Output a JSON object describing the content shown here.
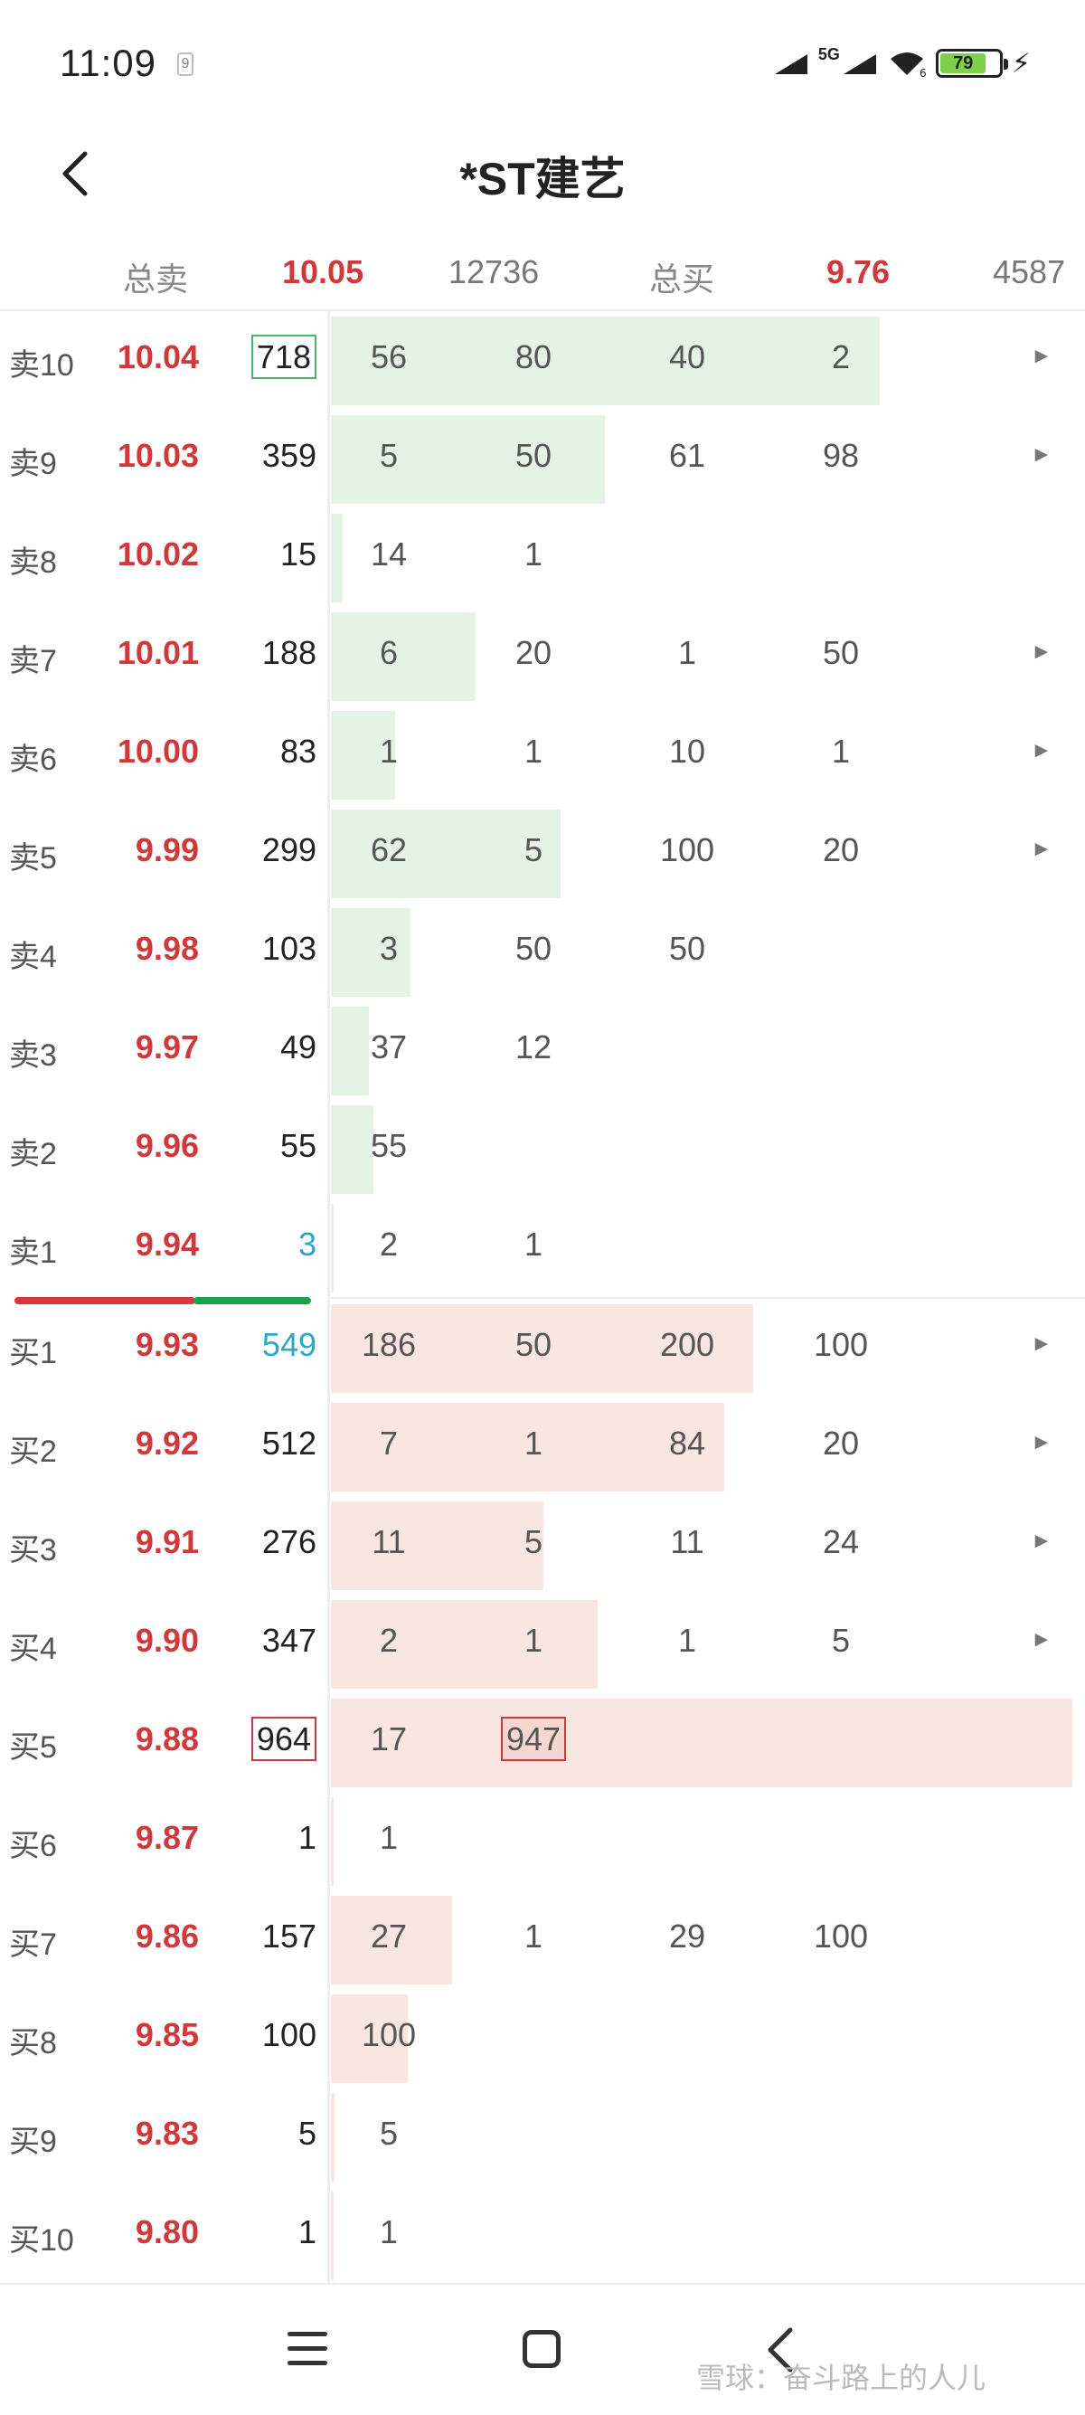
{
  "status_bar": {
    "time": "11:09",
    "notification": "9",
    "network": "5G",
    "wifi_badge": "6",
    "battery": "79",
    "battery_level": 0.79
  },
  "header": {
    "title": "*ST建艺",
    "back_icon": "chevron-left-icon"
  },
  "summary": {
    "sell_label": "总卖",
    "sell_price": "10.05",
    "sell_total": "12736",
    "buy_label": "总买",
    "buy_price": "9.76",
    "buy_total": "4587"
  },
  "colors": {
    "price": "#d0393b",
    "sell_bar": "#e4f3e4",
    "buy_bar": "#f9e6e0",
    "highlight_cyan": "#29a9c8"
  },
  "sell_rows": [
    {
      "level": "卖10",
      "price": "10.04",
      "volume": "718",
      "orders": [
        "56",
        "80",
        "40",
        "2"
      ],
      "arrow": true,
      "bar": 0.74,
      "vol_style": "box-green"
    },
    {
      "level": "卖9",
      "price": "10.03",
      "volume": "359",
      "orders": [
        "5",
        "50",
        "61",
        "98"
      ],
      "arrow": true,
      "bar": 0.37,
      "vol_style": ""
    },
    {
      "level": "卖8",
      "price": "10.02",
      "volume": "15",
      "orders": [
        "14",
        "1"
      ],
      "arrow": false,
      "bar": 0.016,
      "vol_style": ""
    },
    {
      "level": "卖7",
      "price": "10.01",
      "volume": "188",
      "orders": [
        "6",
        "20",
        "1",
        "50"
      ],
      "arrow": true,
      "bar": 0.195,
      "vol_style": ""
    },
    {
      "level": "卖6",
      "price": "10.00",
      "volume": "83",
      "orders": [
        "1",
        "1",
        "10",
        "1"
      ],
      "arrow": true,
      "bar": 0.086,
      "vol_style": ""
    },
    {
      "level": "卖5",
      "price": "9.99",
      "volume": "299",
      "orders": [
        "62",
        "5",
        "100",
        "20"
      ],
      "arrow": true,
      "bar": 0.31,
      "vol_style": ""
    },
    {
      "level": "卖4",
      "price": "9.98",
      "volume": "103",
      "orders": [
        "3",
        "50",
        "50"
      ],
      "arrow": false,
      "bar": 0.107,
      "vol_style": ""
    },
    {
      "level": "卖3",
      "price": "9.97",
      "volume": "49",
      "orders": [
        "37",
        "12"
      ],
      "arrow": false,
      "bar": 0.051,
      "vol_style": ""
    },
    {
      "level": "卖2",
      "price": "9.96",
      "volume": "55",
      "orders": [
        "55"
      ],
      "arrow": false,
      "bar": 0.057,
      "vol_style": ""
    },
    {
      "level": "卖1",
      "price": "9.94",
      "volume": "3",
      "orders": [
        "2",
        "1"
      ],
      "arrow": false,
      "bar": 0.003,
      "vol_style": "cyan"
    }
  ],
  "buy_rows": [
    {
      "level": "买1",
      "price": "9.93",
      "volume": "549",
      "orders": [
        "186",
        "50",
        "200",
        "100"
      ],
      "arrow": true,
      "bar": 0.57,
      "vol_style": "cyan"
    },
    {
      "level": "买2",
      "price": "9.92",
      "volume": "512",
      "orders": [
        "7",
        "1",
        "84",
        "20"
      ],
      "arrow": true,
      "bar": 0.53,
      "vol_style": ""
    },
    {
      "level": "买3",
      "price": "9.91",
      "volume": "276",
      "orders": [
        "11",
        "5",
        "11",
        "24"
      ],
      "arrow": true,
      "bar": 0.286,
      "vol_style": ""
    },
    {
      "level": "买4",
      "price": "9.90",
      "volume": "347",
      "orders": [
        "2",
        "1",
        "1",
        "5"
      ],
      "arrow": true,
      "bar": 0.36,
      "vol_style": ""
    },
    {
      "level": "买5",
      "price": "9.88",
      "volume": "964",
      "orders": [
        "17",
        "947"
      ],
      "arrow": false,
      "bar": 1.0,
      "vol_style": "box-red",
      "boxed_order": 1
    },
    {
      "level": "买6",
      "price": "9.87",
      "volume": "1",
      "orders": [
        "1"
      ],
      "arrow": false,
      "bar": 0.001,
      "vol_style": ""
    },
    {
      "level": "买7",
      "price": "9.86",
      "volume": "157",
      "orders": [
        "27",
        "1",
        "29",
        "100"
      ],
      "arrow": false,
      "bar": 0.163,
      "vol_style": ""
    },
    {
      "level": "买8",
      "price": "9.85",
      "volume": "100",
      "orders": [
        "100"
      ],
      "arrow": false,
      "bar": 0.104,
      "vol_style": ""
    },
    {
      "level": "买9",
      "price": "9.83",
      "volume": "5",
      "orders": [
        "5"
      ],
      "arrow": false,
      "bar": 0.005,
      "vol_style": ""
    },
    {
      "level": "买10",
      "price": "9.80",
      "volume": "1",
      "orders": [
        "1"
      ],
      "arrow": false,
      "bar": 0.001,
      "vol_style": ""
    }
  ],
  "nav": {
    "watermark": "雪球：奋斗路上的人儿"
  }
}
